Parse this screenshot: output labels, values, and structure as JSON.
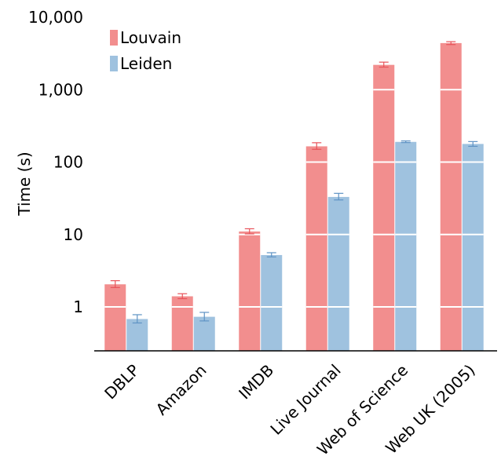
{
  "chart_data": {
    "type": "bar",
    "title": "",
    "xlabel": "",
    "ylabel": "Time (s)",
    "yscale": "log",
    "ylim": [
      0.25,
      10000
    ],
    "yticks": [
      1,
      10,
      100,
      1000,
      10000
    ],
    "ytick_labels": [
      "1",
      "10",
      "100",
      "1,000",
      "10,000"
    ],
    "grid": "white horizontal lines drawn over bars at major ticks",
    "legend": "top-left",
    "categories": [
      "DBLP",
      "Amazon",
      "IMDB",
      "Live Journal",
      "Web of Science",
      "Web UK (2005)"
    ],
    "series": [
      {
        "name": "Louvain",
        "color": "#f28e8e",
        "error_color": "#e8535a",
        "values": [
          2.05,
          1.4,
          11,
          165,
          2200,
          4400
        ],
        "error_low": [
          1.85,
          1.3,
          10.2,
          150,
          2050,
          4200
        ],
        "error_high": [
          2.3,
          1.52,
          12,
          185,
          2400,
          4600
        ]
      },
      {
        "name": "Leiden",
        "color": "#9fc2df",
        "error_color": "#5f93c4",
        "values": [
          0.68,
          0.73,
          5.2,
          33,
          190,
          178
        ],
        "error_low": [
          0.6,
          0.64,
          4.9,
          30,
          186,
          165
        ],
        "error_high": [
          0.78,
          0.84,
          5.6,
          37,
          196,
          192
        ]
      }
    ]
  }
}
